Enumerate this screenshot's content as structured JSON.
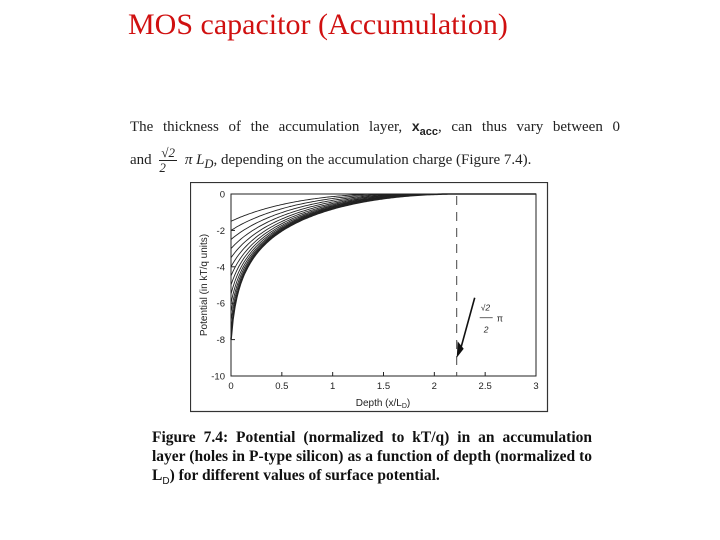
{
  "slide": {
    "title": "MOS capacitor (Accumulation)"
  },
  "body": {
    "line1_a": "The thickness of the accumulation layer,",
    "line1_sym": "x",
    "line1_sub": "acc",
    "line1_b": ", can thus vary between 0",
    "line2_a": "and",
    "frac_num": "√2",
    "frac_den": "2",
    "line2_b": "π L",
    "line2_sub": "D",
    "line2_c": ", depending on the accumulation charge (Figure 7.4)."
  },
  "caption": {
    "label": "Figure 7.4",
    "colon": ": Potential",
    "text_a": "(normalized to kT/q) in an accumulation layer (holes in P-type silicon) as a function of depth (normalized to L",
    "sub": "D",
    "text_b": ") for different values of surface potential."
  },
  "chart_data": {
    "type": "line",
    "xlabel": "Depth (x/L",
    "xlabel_sub": "D",
    "xlabel_end": ")",
    "ylabel": "Potential (in kT/q units)",
    "xlim": [
      0,
      3
    ],
    "ylim": [
      -10,
      0
    ],
    "x_ticks": [
      "0",
      "0.5",
      "1",
      "1.5",
      "2",
      "2.5",
      "3"
    ],
    "y_ticks": [
      "0",
      "-2",
      "-4",
      "-6",
      "-8",
      "-10"
    ],
    "surface_potentials": [
      -1.5,
      -2,
      -2.5,
      -3,
      -3.5,
      -4,
      -4.5,
      -5,
      -5.5,
      -6,
      -6.5,
      -7,
      -7.5,
      -8
    ],
    "annotation": {
      "label_num": "√2",
      "label_den": "2",
      "label_pi": "π",
      "x": 2.22
    }
  }
}
